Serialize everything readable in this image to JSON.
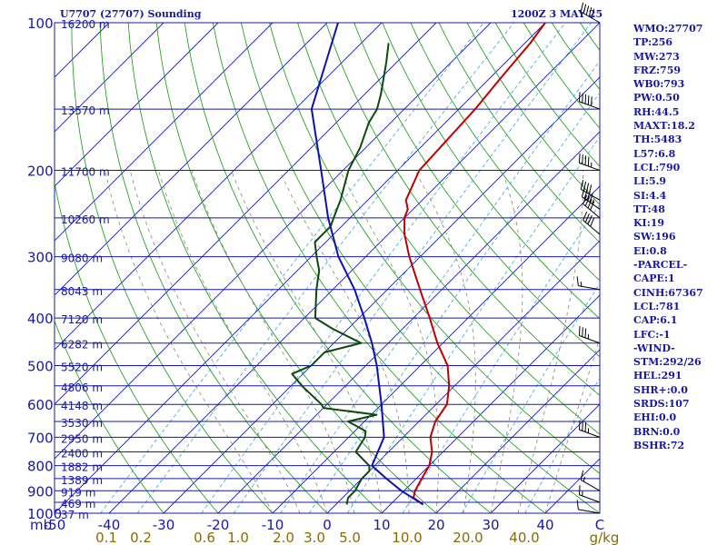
{
  "header": {
    "station": "U7707 (27707) Sounding",
    "time": "1200Z  3 MAY 25"
  },
  "indices": [
    "WMO:27707",
    "TP:256",
    "MW:273",
    "FRZ:759",
    "WB0:793",
    "PW:0.50",
    "RH:44.5",
    "MAXT:18.2",
    "TH:5483",
    "L57:6.8",
    "LCL:790",
    "LI:5.9",
    "SI:4.4",
    "TT:48",
    "KI:19",
    "SW:196",
    "EI:0.8",
    "-PARCEL-",
    "CAPE:1",
    "CINH:67367",
    "LCL:781",
    "CAP:6.1",
    "LFC:-1",
    "-WIND-",
    "STM:292/26",
    "HEL:291",
    "SHR+:0.0",
    "SRDS:107",
    "EHI:0.0",
    "BRN:0.0",
    "BSHR:72"
  ],
  "colors": {
    "background": "#ffffff",
    "border": "#1818a0",
    "isobar": "#1818a0",
    "isotherm": "#1818a0",
    "dry_adiabat": "#0e9a0e",
    "moist_adiabat": "#8a8a6a",
    "mixing_ratio": "#38a8d8",
    "temperature": "#c00000",
    "dewpoint": "#0c4a0c",
    "parcel": "#1010b0",
    "axis_text": "#1818a0",
    "mixing_text": "#8a6a00",
    "wind": "#000000"
  },
  "chart_data": {
    "type": "line",
    "subtype": "skew-T log-P",
    "y_axis": {
      "scale": "log",
      "unit": "mb",
      "ylim": [
        1000,
        100
      ],
      "tick_labels": [
        "100",
        "200",
        "300",
        "400",
        "500",
        "600",
        "700",
        "800",
        "900",
        "1000"
      ]
    },
    "x_axis": {
      "label": "mb",
      "unit": "C",
      "xlim": [
        -50,
        50
      ],
      "tick_labels": [
        "-50",
        "-40",
        "-30",
        "-20",
        "-10",
        "0",
        "10",
        "20",
        "30",
        "40",
        "C"
      ]
    },
    "height_labels": [
      {
        "p": 100,
        "label": "16200 m"
      },
      {
        "p": 150,
        "label": "13570 m"
      },
      {
        "p": 200,
        "label": "11700 m"
      },
      {
        "p": 250,
        "label": "10260 m"
      },
      {
        "p": 300,
        "label": "9080 m"
      },
      {
        "p": 350,
        "label": "8043 m"
      },
      {
        "p": 400,
        "label": "7120 m"
      },
      {
        "p": 450,
        "label": "6282 m"
      },
      {
        "p": 500,
        "label": "5520 m"
      },
      {
        "p": 550,
        "label": "4806 m"
      },
      {
        "p": 600,
        "label": "4148 m"
      },
      {
        "p": 650,
        "label": "3530 m"
      },
      {
        "p": 700,
        "label": "2950 m"
      },
      {
        "p": 750,
        "label": "2400 m"
      },
      {
        "p": 800,
        "label": "1882 m"
      },
      {
        "p": 850,
        "label": "1389 m"
      },
      {
        "p": 900,
        "label": "919 m"
      },
      {
        "p": 950,
        "label": "469 m"
      },
      {
        "p": 1000,
        "label": "37 m"
      }
    ],
    "mixing_ratio_labels": [
      "0.1",
      "0.2",
      "0.6",
      "1.0",
      "2.0",
      "3.0",
      "5.0",
      "10.0",
      "20.0",
      "40.0",
      "g/kg"
    ],
    "mixing_ratio_values": [
      0.1,
      0.2,
      0.6,
      1.0,
      2.0,
      3.0,
      5.0,
      10.0,
      20.0,
      40.0
    ],
    "series": [
      {
        "key": "temperature",
        "points": [
          [
            960,
            16
          ],
          [
            930,
            13
          ],
          [
            900,
            12
          ],
          [
            850,
            11
          ],
          [
            800,
            10
          ],
          [
            750,
            8
          ],
          [
            700,
            5
          ],
          [
            650,
            3
          ],
          [
            600,
            2
          ],
          [
            550,
            -1
          ],
          [
            500,
            -5
          ],
          [
            450,
            -11
          ],
          [
            400,
            -17
          ],
          [
            350,
            -24
          ],
          [
            300,
            -32
          ],
          [
            270,
            -37
          ],
          [
            250,
            -40
          ],
          [
            240,
            -41
          ],
          [
            230,
            -43
          ],
          [
            200,
            -46
          ],
          [
            150,
            -47
          ],
          [
            130,
            -48
          ],
          [
            110,
            -49
          ],
          [
            100,
            -50
          ]
        ]
      },
      {
        "key": "dewpoint",
        "points": [
          [
            960,
            2
          ],
          [
            930,
            1
          ],
          [
            900,
            1
          ],
          [
            850,
            0
          ],
          [
            820,
            0
          ],
          [
            800,
            -1
          ],
          [
            750,
            -6
          ],
          [
            700,
            -7
          ],
          [
            680,
            -8
          ],
          [
            650,
            -13
          ],
          [
            630,
            -9
          ],
          [
            610,
            -20
          ],
          [
            600,
            -21
          ],
          [
            550,
            -28
          ],
          [
            520,
            -32
          ],
          [
            500,
            -30
          ],
          [
            470,
            -30
          ],
          [
            450,
            -25
          ],
          [
            420,
            -33
          ],
          [
            400,
            -38
          ],
          [
            350,
            -43
          ],
          [
            320,
            -46
          ],
          [
            300,
            -49
          ],
          [
            280,
            -52
          ],
          [
            260,
            -52
          ],
          [
            250,
            -53
          ],
          [
            230,
            -55
          ],
          [
            200,
            -59
          ],
          [
            180,
            -61
          ],
          [
            160,
            -64
          ],
          [
            150,
            -65
          ],
          [
            140,
            -67
          ],
          [
            120,
            -72
          ],
          [
            110,
            -75
          ]
        ]
      },
      {
        "key": "parcel",
        "points": [
          [
            960,
            16
          ],
          [
            900,
            9.5
          ],
          [
            850,
            4.5
          ],
          [
            800,
            -0.5
          ],
          [
            700,
            -3.5
          ],
          [
            600,
            -10
          ],
          [
            500,
            -18
          ],
          [
            450,
            -23
          ],
          [
            400,
            -29
          ],
          [
            350,
            -36
          ],
          [
            300,
            -45
          ],
          [
            250,
            -54
          ],
          [
            200,
            -64
          ],
          [
            150,
            -77
          ],
          [
            100,
            -88
          ]
        ]
      }
    ],
    "wind_barbs": [
      {
        "p": 100,
        "dir": 300,
        "speed_kt": 50
      },
      {
        "p": 150,
        "dir": 290,
        "speed_kt": 50
      },
      {
        "p": 200,
        "dir": 290,
        "speed_kt": 45
      },
      {
        "p": 230,
        "dir": 300,
        "speed_kt": 40
      },
      {
        "p": 240,
        "dir": 305,
        "speed_kt": 45
      },
      {
        "p": 250,
        "dir": 310,
        "speed_kt": 40
      },
      {
        "p": 270,
        "dir": 310,
        "speed_kt": 40
      },
      {
        "p": 350,
        "dir": 280,
        "speed_kt": 15
      },
      {
        "p": 450,
        "dir": 290,
        "speed_kt": 35
      },
      {
        "p": 700,
        "dir": 290,
        "speed_kt": 35
      },
      {
        "p": 900,
        "dir": 300,
        "speed_kt": 15
      },
      {
        "p": 950,
        "dir": 290,
        "speed_kt": 15
      },
      {
        "p": 1000,
        "dir": 280,
        "speed_kt": 10
      }
    ]
  }
}
